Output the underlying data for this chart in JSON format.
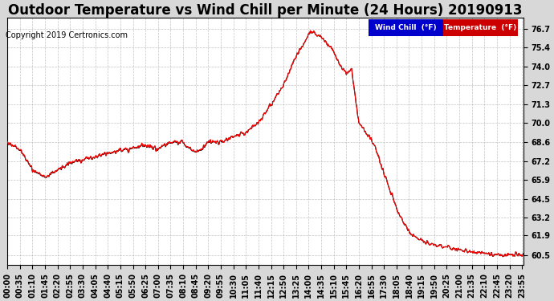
{
  "title": "Outdoor Temperature vs Wind Chill per Minute (24 Hours) 20190913",
  "copyright": "Copyright 2019 Certronics.com",
  "yticks": [
    60.5,
    61.9,
    63.2,
    64.5,
    65.9,
    67.2,
    68.6,
    70.0,
    71.3,
    72.7,
    74.0,
    75.4,
    76.7
  ],
  "ymin": 59.8,
  "ymax": 77.5,
  "fig_bg_color": "#d8d8d8",
  "plot_bg_color": "#ffffff",
  "grid_color": "#aaaaaa",
  "temp_color": "#ff0000",
  "windchill_color": "#000000",
  "legend_windchill_bg": "#0000cc",
  "legend_temp_bg": "#cc0000",
  "legend_text_color": "#ffffff",
  "title_fontsize": 12,
  "copyright_fontsize": 7,
  "tick_fontsize": 7,
  "n_minutes": 1440,
  "x_tick_interval": 35
}
